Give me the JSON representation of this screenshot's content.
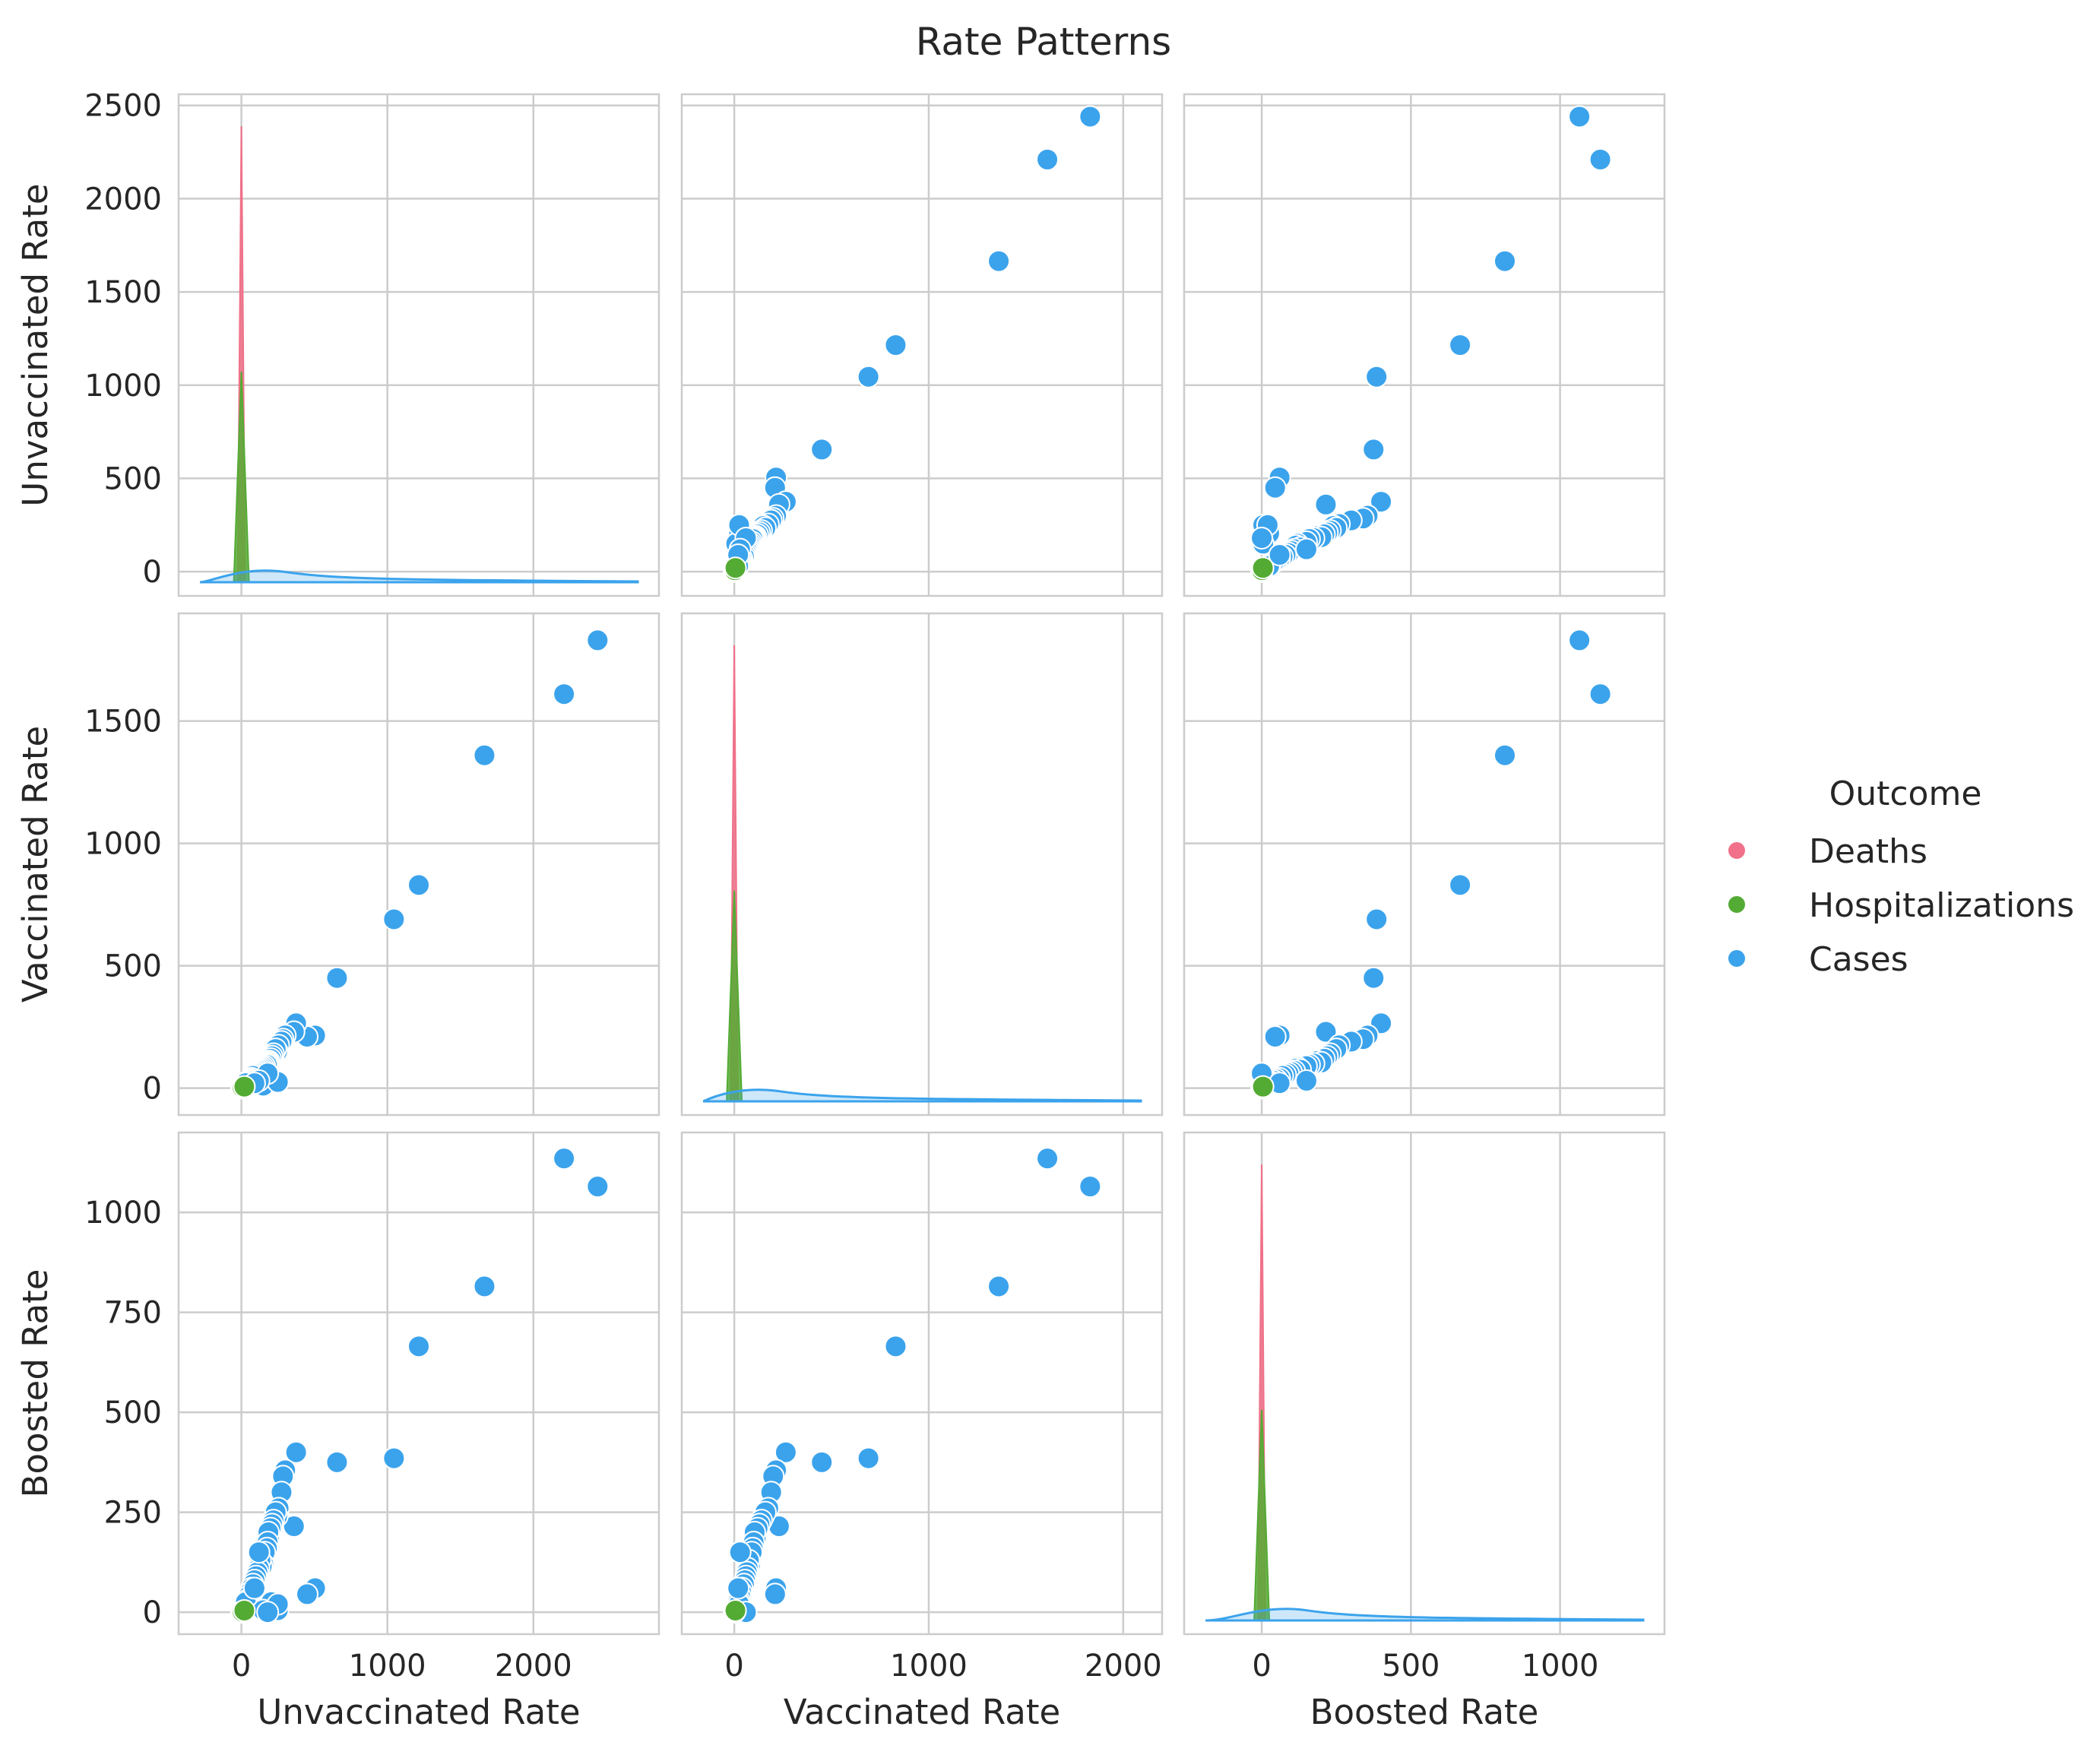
{
  "chart_data": {
    "type": "scatter",
    "kind": "pairplot",
    "title": "Rate Patterns",
    "variables": [
      "Unvaccinated Rate",
      "Vaccinated Rate",
      "Boosted Rate"
    ],
    "diagonal": "kde",
    "grid": true,
    "legend": {
      "title": "Outcome",
      "placement": "right"
    },
    "axes": {
      "Unvaccinated Rate": {
        "lim": [
          -130,
          2560
        ],
        "ticks": [
          0,
          500,
          1000,
          1500,
          2000,
          2500
        ],
        "xlim": [
          -430,
          2860
        ],
        "xticks": [
          0,
          1000,
          2000
        ]
      },
      "Vaccinated Rate": {
        "lim": [
          -110,
          1940
        ],
        "ticks": [
          0,
          500,
          1000,
          1500
        ],
        "xlim": [
          -270,
          2200
        ],
        "xticks": [
          0,
          1000,
          2000
        ]
      },
      "Boosted Rate": {
        "lim": [
          -55,
          1200
        ],
        "ticks": [
          0,
          250,
          500,
          750,
          1000
        ],
        "xlim": [
          -260,
          1350
        ],
        "xticks": [
          0,
          500,
          1000
        ]
      }
    },
    "series": [
      {
        "name": "Deaths",
        "color": "#f07189",
        "points": [
          [
            2,
            0.5,
            0.2
          ],
          [
            3,
            1,
            0.4
          ],
          [
            1,
            0.3,
            0.1
          ]
        ]
      },
      {
        "name": "Hospitalizations",
        "color": "#54ab34",
        "points": [
          [
            10,
            4,
            2
          ],
          [
            15,
            5,
            3
          ],
          [
            8,
            3,
            1
          ],
          [
            20,
            6,
            4
          ]
        ]
      },
      {
        "name": "Cases",
        "color": "#3ba3ec",
        "points": [
          [
            2440,
            1830,
            1065
          ],
          [
            2210,
            1610,
            1135
          ],
          [
            1665,
            1360,
            815
          ],
          [
            1215,
            830,
            665
          ],
          [
            1045,
            690,
            385
          ],
          [
            655,
            450,
            375
          ],
          [
            505,
            215,
            60
          ],
          [
            450,
            210,
            45
          ],
          [
            375,
            265,
            400
          ],
          [
            360,
            230,
            215
          ],
          [
            300,
            215,
            355
          ],
          [
            285,
            200,
            340
          ],
          [
            275,
            190,
            300
          ],
          [
            255,
            175,
            260
          ],
          [
            245,
            150,
            240
          ],
          [
            250,
            30,
            5
          ],
          [
            235,
            160,
            250
          ],
          [
            220,
            140,
            230
          ],
          [
            210,
            130,
            220
          ],
          [
            205,
            25,
            25
          ],
          [
            200,
            120,
            210
          ],
          [
            190,
            110,
            185
          ],
          [
            185,
            105,
            200
          ],
          [
            180,
            100,
            175
          ],
          [
            175,
            95,
            160
          ],
          [
            160,
            90,
            150
          ],
          [
            150,
            85,
            120
          ],
          [
            140,
            80,
            115
          ],
          [
            130,
            75,
            130
          ],
          [
            120,
            70,
            110
          ],
          [
            110,
            65,
            100
          ],
          [
            100,
            60,
            90
          ],
          [
            90,
            55,
            80
          ],
          [
            80,
            50,
            70
          ],
          [
            70,
            40,
            60
          ],
          [
            60,
            35,
            50
          ],
          [
            50,
            30,
            40
          ],
          [
            40,
            25,
            30
          ],
          [
            30,
            20,
            25
          ],
          [
            150,
            10,
            5
          ],
          [
            250,
            25,
            20
          ],
          [
            180,
            60,
            0
          ],
          [
            120,
            30,
            150
          ],
          [
            90,
            20,
            60
          ]
        ]
      }
    ]
  }
}
